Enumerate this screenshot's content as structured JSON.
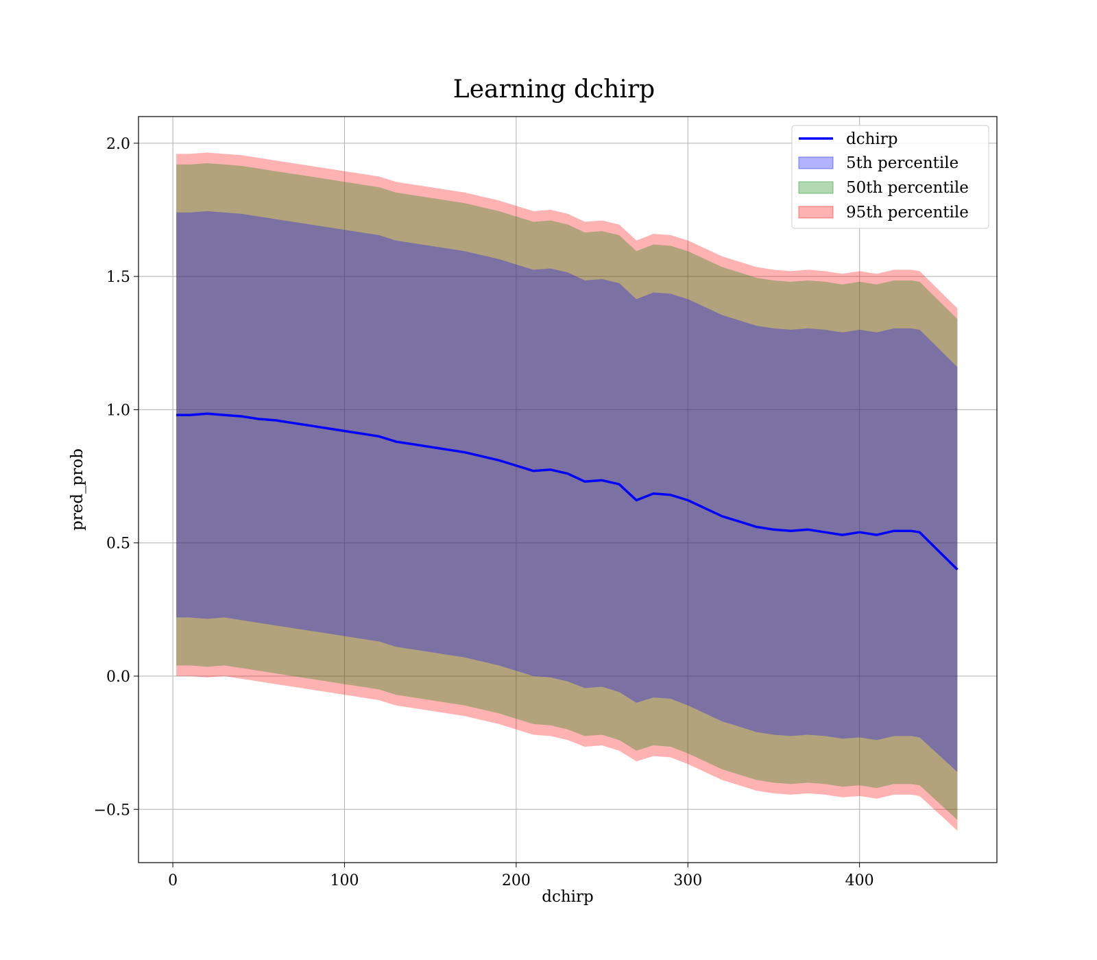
{
  "chart_data": {
    "type": "line",
    "title": "Learning dchirp",
    "xlabel": "dchirp",
    "ylabel": "pred_prob",
    "xlim": [
      -20,
      480
    ],
    "ylim": [
      -0.7,
      2.1
    ],
    "xticks": [
      0,
      100,
      200,
      300,
      400
    ],
    "yticks": [
      -0.5,
      0.0,
      0.5,
      1.0,
      1.5,
      2.0
    ],
    "xtick_labels": [
      "0",
      "100",
      "200",
      "300",
      "400"
    ],
    "ytick_labels": [
      "−0.5",
      "0.0",
      "0.5",
      "1.0",
      "1.5",
      "2.0"
    ],
    "grid": true,
    "legend_position": "top-right",
    "x": [
      2,
      10,
      20,
      30,
      40,
      50,
      60,
      70,
      80,
      90,
      100,
      110,
      120,
      130,
      140,
      150,
      160,
      170,
      180,
      190,
      200,
      210,
      220,
      230,
      240,
      250,
      260,
      270,
      280,
      290,
      300,
      310,
      320,
      330,
      340,
      350,
      360,
      370,
      380,
      390,
      400,
      410,
      420,
      430,
      435,
      457
    ],
    "series": [
      {
        "name": "dchirp",
        "kind": "line",
        "color": "#0000ff",
        "values": [
          0.98,
          0.98,
          0.985,
          0.98,
          0.975,
          0.965,
          0.96,
          0.95,
          0.94,
          0.93,
          0.92,
          0.91,
          0.9,
          0.88,
          0.87,
          0.86,
          0.85,
          0.84,
          0.825,
          0.81,
          0.79,
          0.77,
          0.775,
          0.76,
          0.73,
          0.735,
          0.72,
          0.66,
          0.685,
          0.68,
          0.66,
          0.63,
          0.6,
          0.58,
          0.56,
          0.55,
          0.545,
          0.55,
          0.54,
          0.53,
          0.54,
          0.53,
          0.545,
          0.545,
          0.54,
          0.4
        ]
      },
      {
        "name": "5th percentile",
        "kind": "band",
        "color": "#0000ff",
        "opacity": 0.3,
        "lower": [
          0.22,
          0.22,
          0.215,
          0.22,
          0.21,
          0.2,
          0.19,
          0.18,
          0.17,
          0.16,
          0.15,
          0.14,
          0.13,
          0.11,
          0.1,
          0.09,
          0.08,
          0.07,
          0.055,
          0.04,
          0.02,
          0.0,
          -0.005,
          -0.02,
          -0.045,
          -0.04,
          -0.06,
          -0.1,
          -0.08,
          -0.085,
          -0.11,
          -0.14,
          -0.17,
          -0.19,
          -0.21,
          -0.22,
          -0.225,
          -0.22,
          -0.225,
          -0.235,
          -0.23,
          -0.24,
          -0.225,
          -0.225,
          -0.23,
          -0.36
        ],
        "upper": [
          1.74,
          1.74,
          1.745,
          1.74,
          1.735,
          1.725,
          1.715,
          1.705,
          1.695,
          1.685,
          1.675,
          1.665,
          1.655,
          1.635,
          1.625,
          1.615,
          1.605,
          1.595,
          1.58,
          1.565,
          1.545,
          1.525,
          1.53,
          1.515,
          1.485,
          1.49,
          1.475,
          1.415,
          1.44,
          1.435,
          1.415,
          1.385,
          1.355,
          1.335,
          1.315,
          1.305,
          1.3,
          1.305,
          1.3,
          1.29,
          1.3,
          1.29,
          1.305,
          1.305,
          1.3,
          1.16
        ]
      },
      {
        "name": "50th percentile",
        "kind": "band",
        "color": "#008000",
        "opacity": 0.3,
        "lower": [
          0.04,
          0.04,
          0.035,
          0.04,
          0.03,
          0.02,
          0.01,
          0.0,
          -0.01,
          -0.02,
          -0.03,
          -0.04,
          -0.05,
          -0.07,
          -0.08,
          -0.09,
          -0.1,
          -0.11,
          -0.125,
          -0.14,
          -0.16,
          -0.18,
          -0.185,
          -0.2,
          -0.225,
          -0.22,
          -0.24,
          -0.28,
          -0.26,
          -0.265,
          -0.29,
          -0.32,
          -0.35,
          -0.37,
          -0.39,
          -0.4,
          -0.405,
          -0.4,
          -0.405,
          -0.415,
          -0.41,
          -0.42,
          -0.405,
          -0.405,
          -0.41,
          -0.54
        ],
        "upper": [
          1.92,
          1.92,
          1.925,
          1.92,
          1.915,
          1.905,
          1.895,
          1.885,
          1.875,
          1.865,
          1.855,
          1.845,
          1.835,
          1.815,
          1.805,
          1.795,
          1.785,
          1.775,
          1.76,
          1.745,
          1.725,
          1.705,
          1.71,
          1.695,
          1.665,
          1.67,
          1.655,
          1.595,
          1.62,
          1.615,
          1.595,
          1.565,
          1.535,
          1.515,
          1.495,
          1.485,
          1.48,
          1.485,
          1.48,
          1.47,
          1.48,
          1.47,
          1.485,
          1.485,
          1.48,
          1.34
        ]
      },
      {
        "name": "95th percentile",
        "kind": "band",
        "color": "#ff0000",
        "opacity": 0.3,
        "lower": [
          0.0,
          0.0,
          -0.005,
          0.0,
          -0.01,
          -0.02,
          -0.03,
          -0.04,
          -0.05,
          -0.06,
          -0.07,
          -0.08,
          -0.09,
          -0.11,
          -0.12,
          -0.13,
          -0.14,
          -0.15,
          -0.165,
          -0.18,
          -0.2,
          -0.22,
          -0.225,
          -0.24,
          -0.265,
          -0.26,
          -0.28,
          -0.32,
          -0.3,
          -0.305,
          -0.33,
          -0.36,
          -0.39,
          -0.41,
          -0.43,
          -0.44,
          -0.445,
          -0.44,
          -0.445,
          -0.455,
          -0.45,
          -0.46,
          -0.445,
          -0.445,
          -0.45,
          -0.58
        ],
        "upper": [
          1.96,
          1.96,
          1.965,
          1.96,
          1.955,
          1.945,
          1.935,
          1.925,
          1.915,
          1.905,
          1.895,
          1.885,
          1.875,
          1.855,
          1.845,
          1.835,
          1.825,
          1.815,
          1.8,
          1.785,
          1.765,
          1.745,
          1.75,
          1.735,
          1.705,
          1.71,
          1.695,
          1.635,
          1.66,
          1.655,
          1.635,
          1.605,
          1.575,
          1.555,
          1.535,
          1.525,
          1.52,
          1.525,
          1.52,
          1.51,
          1.52,
          1.51,
          1.525,
          1.525,
          1.52,
          1.38
        ]
      }
    ]
  }
}
